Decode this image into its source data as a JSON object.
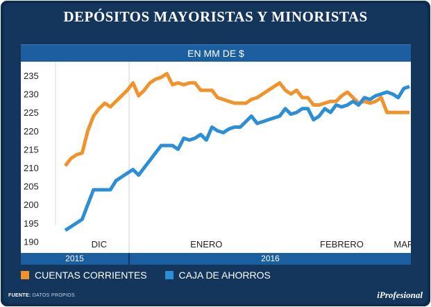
{
  "title": "DEPÓSITOS MAYORISTAS Y MINORISTAS",
  "subtitle": "EN MM DE $",
  "source_label": "FUENTE:",
  "source_value": "DATOS PROPIOS",
  "logo": "iProfesional",
  "colors": {
    "cuentas": "#f0932b",
    "caja": "#2c8fd6",
    "frame": "#0c2d4f",
    "band": "#1b5fa0"
  },
  "chart_data": {
    "type": "line",
    "title": "DEPÓSITOS MAYORISTAS Y MINORISTAS",
    "ylabel": "EN MM DE $",
    "ylim": [
      188,
      238
    ],
    "yticks": [
      190,
      195,
      200,
      205,
      210,
      215,
      220,
      225,
      230,
      235
    ],
    "x_count": 62,
    "months": [
      {
        "label": "DIC",
        "at": 6
      },
      {
        "label": "ENERO",
        "at": 25
      },
      {
        "label": "FEBRERO",
        "at": 49
      },
      {
        "label": "MAR",
        "at": 60
      }
    ],
    "years": [
      {
        "label": "2015",
        "from": 0,
        "to": 12
      },
      {
        "label": "2016",
        "from": 12,
        "to": 62
      }
    ],
    "series": [
      {
        "name": "CUENTAS CORRIENTES",
        "values": [
          210.5,
          212.5,
          213.5,
          214,
          220,
          224,
          226,
          227.5,
          226.5,
          228,
          229.5,
          231,
          233,
          229.5,
          231,
          233,
          234,
          234.5,
          235.5,
          232.5,
          233,
          232.5,
          233,
          233,
          231,
          231,
          231,
          229,
          228.5,
          228,
          227.5,
          227.5,
          227.5,
          228.5,
          229,
          230,
          231,
          232,
          233,
          231,
          230,
          231,
          229,
          229,
          227,
          227,
          227.5,
          228,
          228,
          229.5,
          230.5,
          229,
          227.5,
          228,
          227.5,
          228,
          229,
          225,
          225,
          225,
          225,
          225
        ]
      },
      {
        "name": "CAJA DE AHORROS",
        "values": [
          193,
          194,
          195,
          196,
          200,
          204,
          204,
          204,
          204,
          206.5,
          207.5,
          208.5,
          209.5,
          208,
          210,
          212,
          214,
          216,
          216,
          216,
          215,
          218,
          217.5,
          218,
          219,
          217.5,
          221,
          220,
          219.5,
          220.5,
          221,
          221,
          222.5,
          224,
          222,
          222.5,
          223,
          223.5,
          224,
          226,
          224.5,
          225,
          226,
          226,
          223,
          224,
          226,
          225,
          227,
          226.5,
          227,
          228,
          227,
          229,
          228.5,
          229.5,
          230,
          230.5,
          230,
          229,
          231.5,
          232
        ]
      }
    ]
  }
}
